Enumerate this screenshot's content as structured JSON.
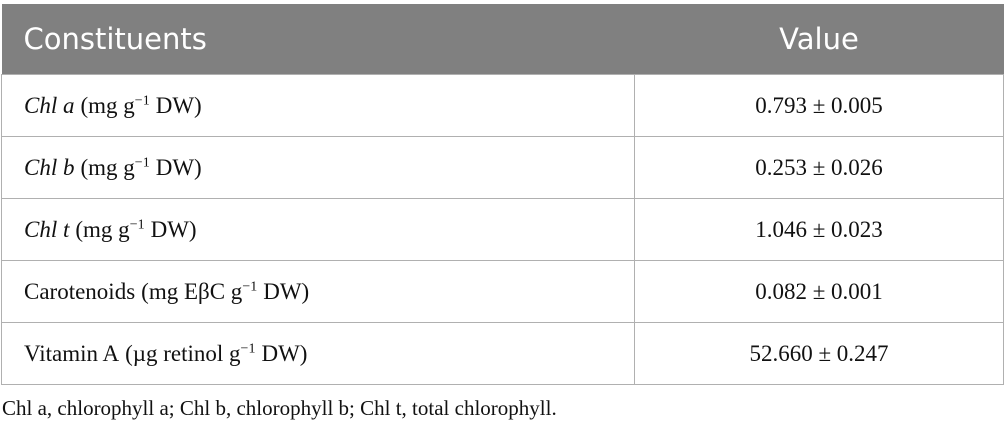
{
  "table": {
    "header": [
      "Constituents",
      "Value"
    ],
    "rows": [
      {
        "name": "Chl a",
        "name_italic": true,
        "unit": "(mg g",
        "exp": "−1",
        "unit_end": "DW)",
        "value": "0.793 ± 0.005"
      },
      {
        "name": "Chl b",
        "name_italic": true,
        "unit": "(mg g",
        "exp": "−1",
        "unit_end": "DW)",
        "value": "0.253 ± 0.026"
      },
      {
        "name": "Chl t",
        "name_italic": true,
        "unit": "(mg g",
        "exp": "−1",
        "unit_end": "DW)",
        "value": "1.046 ± 0.023"
      },
      {
        "name": "Carotenoids",
        "name_italic": false,
        "unit": "(mg EβC g",
        "exp": "−1",
        "unit_end": "DW)",
        "value": "0.082 ± 0.001"
      },
      {
        "name": "Vitamin A",
        "name_italic": false,
        "unit": "(µg retinol g",
        "exp": "−1",
        "unit_end": "DW)",
        "value": "52.660 ± 0.247"
      }
    ]
  },
  "footnote": "Chl a, chlorophyll a; Chl b, chlorophyll b; Chl t, total chlorophyll."
}
